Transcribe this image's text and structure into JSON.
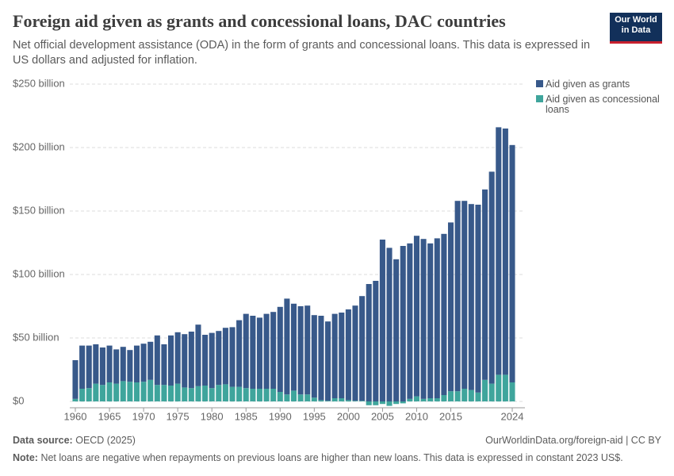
{
  "chart_data": {
    "type": "stacked-bar",
    "title": "Foreign aid given as grants and concessional loans, DAC countries",
    "subtitle": "Net official development assistance (ODA) in the form of grants and concessional loans. This data is expressed in US dollars and adjusted for inflation.",
    "x": [
      1960,
      1961,
      1962,
      1963,
      1964,
      1965,
      1966,
      1967,
      1968,
      1969,
      1970,
      1971,
      1972,
      1973,
      1974,
      1975,
      1976,
      1977,
      1978,
      1979,
      1980,
      1981,
      1982,
      1983,
      1984,
      1985,
      1986,
      1987,
      1988,
      1989,
      1990,
      1991,
      1992,
      1993,
      1994,
      1995,
      1996,
      1997,
      1998,
      1999,
      2000,
      2001,
      2002,
      2003,
      2004,
      2005,
      2006,
      2007,
      2008,
      2009,
      2010,
      2011,
      2012,
      2013,
      2014,
      2015,
      2016,
      2017,
      2018,
      2019,
      2020,
      2021,
      2022,
      2023,
      2024
    ],
    "series": [
      {
        "name": "Aid given as grants",
        "color": "#38598a",
        "values": [
          30.5,
          34,
          33.5,
          31,
          29.5,
          29,
          27,
          27,
          25,
          29,
          30,
          30,
          39,
          32,
          39.5,
          40.5,
          42,
          44.5,
          48.5,
          40,
          43.5,
          42.5,
          44.5,
          47,
          52.5,
          58.5,
          57.5,
          56,
          59,
          60.5,
          67,
          75.5,
          68.5,
          69.5,
          70,
          65,
          66.5,
          62.5,
          66.5,
          67.5,
          71.5,
          75,
          82.5,
          92.5,
          95,
          127.5,
          121,
          112,
          122.5,
          122.5,
          126.5,
          126,
          122,
          126,
          127,
          133,
          150,
          148,
          146.5,
          148,
          150,
          167,
          195,
          194,
          187
        ]
      },
      {
        "name": "Aid given as concessional loans",
        "color": "#3fa59c",
        "values": [
          2,
          10,
          10.5,
          14,
          13,
          15,
          14,
          16,
          15.5,
          15,
          15.5,
          17,
          13,
          13,
          12.5,
          14,
          11,
          10.5,
          12,
          12.5,
          10.5,
          13,
          13.5,
          11.5,
          11.5,
          10.5,
          10,
          10,
          10,
          10,
          7.5,
          5.5,
          8.5,
          5.5,
          5.5,
          3,
          1,
          0.5,
          2.5,
          2.5,
          1,
          0.5,
          0.5,
          -3,
          -3,
          -2,
          -3.5,
          -2,
          -1.5,
          2,
          4,
          2,
          2.5,
          2.5,
          5,
          8,
          8,
          10,
          9,
          7,
          17,
          14,
          21,
          21,
          15
        ]
      }
    ],
    "xlim": [
      1959.5,
      2024.5
    ],
    "xticks": [
      1960,
      1965,
      1970,
      1975,
      1980,
      1985,
      1990,
      1995,
      2000,
      2005,
      2010,
      2015,
      2024
    ],
    "ylim": [
      -5,
      250
    ],
    "yticks": [
      {
        "value": 0,
        "label": "$0"
      },
      {
        "value": 50,
        "label": "$50 billion"
      },
      {
        "value": 100,
        "label": "$100 billion"
      },
      {
        "value": 150,
        "label": "$150 billion"
      },
      {
        "value": 200,
        "label": "$200 billion"
      },
      {
        "value": 250,
        "label": "$250 billion"
      }
    ],
    "grid": true,
    "legend": "top-right"
  },
  "logo": {
    "line1": "Our World",
    "line2": "in Data"
  },
  "footer": {
    "source_label": "Data source:",
    "source": "OECD (2025)",
    "link": "OurWorldinData.org/foreign-aid | CC BY",
    "note_label": "Note:",
    "note": "Net loans are negative when repayments on previous loans are higher than new loans. This data is expressed in constant 2023 US$."
  }
}
